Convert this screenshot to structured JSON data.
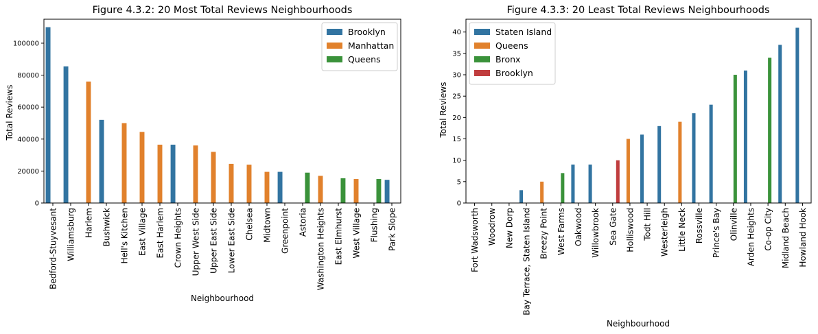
{
  "chart_data": [
    {
      "type": "bar",
      "title": "Figure 4.3.2: 20 Most Total Reviews Neighbourhoods",
      "xlabel": "Neighbourhood",
      "ylabel": "Total Reviews",
      "ylim": [
        0,
        115000
      ],
      "yticks": [
        0,
        20000,
        40000,
        60000,
        80000,
        100000
      ],
      "ytick_labels": [
        "0",
        "20000",
        "40000",
        "60000",
        "80000",
        "100000"
      ],
      "grid": false,
      "legend_position": "top-right",
      "legend": [
        {
          "name": "Brooklyn",
          "color": "#3274a1"
        },
        {
          "name": "Manhattan",
          "color": "#e1812c"
        },
        {
          "name": "Queens",
          "color": "#3a923a"
        }
      ],
      "categories": [
        "Bedford-Stuyvesant",
        "Williamsburg",
        "Harlem",
        "Bushwick",
        "Hell's Kitchen",
        "East Village",
        "East Harlem",
        "Crown Heights",
        "Upper West Side",
        "Upper East Side",
        "Lower East Side",
        "Chelsea",
        "Midtown",
        "Greenpoint",
        "Astoria",
        "Washington Heights",
        "East Elmhurst",
        "West Village",
        "Flushing",
        "Park Slope"
      ],
      "bars": [
        {
          "category": "Bedford-Stuyvesant",
          "series": "Brooklyn",
          "value": 110000
        },
        {
          "category": "Williamsburg",
          "series": "Brooklyn",
          "value": 85500
        },
        {
          "category": "Harlem",
          "series": "Manhattan",
          "value": 76000
        },
        {
          "category": "Bushwick",
          "series": "Brooklyn",
          "value": 52000
        },
        {
          "category": "Hell's Kitchen",
          "series": "Manhattan",
          "value": 50000
        },
        {
          "category": "East Village",
          "series": "Manhattan",
          "value": 44500
        },
        {
          "category": "East Harlem",
          "series": "Manhattan",
          "value": 36500
        },
        {
          "category": "Crown Heights",
          "series": "Brooklyn",
          "value": 36500
        },
        {
          "category": "Upper West Side",
          "series": "Manhattan",
          "value": 36000
        },
        {
          "category": "Upper East Side",
          "series": "Manhattan",
          "value": 32000
        },
        {
          "category": "Lower East Side",
          "series": "Manhattan",
          "value": 24500
        },
        {
          "category": "Chelsea",
          "series": "Manhattan",
          "value": 24000
        },
        {
          "category": "Midtown",
          "series": "Manhattan",
          "value": 19500
        },
        {
          "category": "Greenpoint",
          "series": "Brooklyn",
          "value": 19500
        },
        {
          "category": "Astoria",
          "series": "Queens",
          "value": 19000
        },
        {
          "category": "Washington Heights",
          "series": "Manhattan",
          "value": 17000
        },
        {
          "category": "East Elmhurst",
          "series": "Queens",
          "value": 15500
        },
        {
          "category": "West Village",
          "series": "Manhattan",
          "value": 15000
        },
        {
          "category": "Flushing",
          "series": "Queens",
          "value": 15000
        },
        {
          "category": "Park Slope",
          "series": "Brooklyn",
          "value": 14500
        }
      ]
    },
    {
      "type": "bar",
      "title": "Figure 4.3.3: 20 Least Total Reviews Neighbourhoods",
      "xlabel": "Neighbourhood",
      "ylabel": "Total Reviews",
      "ylim": [
        0,
        43
      ],
      "yticks": [
        0,
        5,
        10,
        15,
        20,
        25,
        30,
        35,
        40
      ],
      "ytick_labels": [
        "0",
        "5",
        "10",
        "15",
        "20",
        "25",
        "30",
        "35",
        "40"
      ],
      "grid": false,
      "legend_position": "top-left",
      "legend": [
        {
          "name": "Staten Island",
          "color": "#3274a1"
        },
        {
          "name": "Queens",
          "color": "#e1812c"
        },
        {
          "name": "Bronx",
          "color": "#3a923a"
        },
        {
          "name": "Brooklyn",
          "color": "#c03d3e"
        }
      ],
      "categories": [
        "Fort Wadsworth",
        "Woodrow",
        "New Dorp",
        "Bay Terrace, Staten Island",
        "Breezy Point",
        "West Farms",
        "Oakwood",
        "Willowbrook",
        "Sea Gate",
        "Holliswood",
        "Todt Hill",
        "Westerleigh",
        "Little Neck",
        "Rossville",
        "Prince's Bay",
        "Olinville",
        "Arden Heights",
        "Co-op City",
        "Midland Beach",
        "Howland Hook"
      ],
      "bars": [
        {
          "category": "Fort Wadsworth",
          "series": "Staten Island",
          "value": 0
        },
        {
          "category": "Woodrow",
          "series": "Staten Island",
          "value": 0
        },
        {
          "category": "New Dorp",
          "series": "Staten Island",
          "value": 0
        },
        {
          "category": "Bay Terrace, Staten Island",
          "series": "Staten Island",
          "value": 3
        },
        {
          "category": "Breezy Point",
          "series": "Queens",
          "value": 5
        },
        {
          "category": "West Farms",
          "series": "Bronx",
          "value": 7
        },
        {
          "category": "Oakwood",
          "series": "Staten Island",
          "value": 9
        },
        {
          "category": "Willowbrook",
          "series": "Staten Island",
          "value": 9
        },
        {
          "category": "Sea Gate",
          "series": "Brooklyn",
          "value": 10
        },
        {
          "category": "Holliswood",
          "series": "Queens",
          "value": 15
        },
        {
          "category": "Todt Hill",
          "series": "Staten Island",
          "value": 16
        },
        {
          "category": "Westerleigh",
          "series": "Staten Island",
          "value": 18
        },
        {
          "category": "Little Neck",
          "series": "Queens",
          "value": 19
        },
        {
          "category": "Rossville",
          "series": "Staten Island",
          "value": 21
        },
        {
          "category": "Prince's Bay",
          "series": "Staten Island",
          "value": 23
        },
        {
          "category": "Olinville",
          "series": "Bronx",
          "value": 30
        },
        {
          "category": "Arden Heights",
          "series": "Staten Island",
          "value": 31
        },
        {
          "category": "Co-op City",
          "series": "Bronx",
          "value": 34
        },
        {
          "category": "Midland Beach",
          "series": "Staten Island",
          "value": 37
        },
        {
          "category": "Howland Hook",
          "series": "Staten Island",
          "value": 41
        }
      ]
    }
  ]
}
